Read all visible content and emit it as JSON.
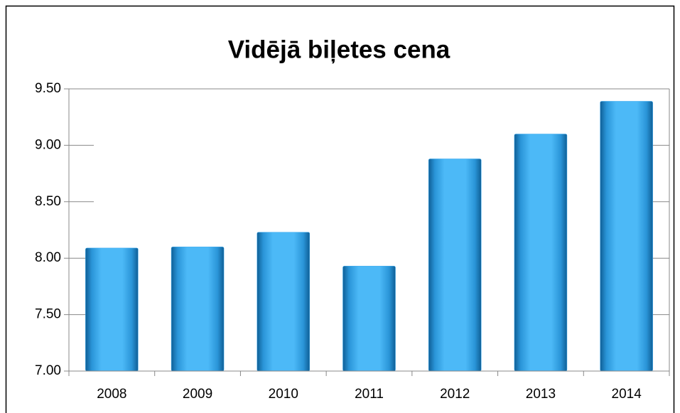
{
  "chart_data": {
    "type": "bar",
    "title": "Vidējā biļetes cena",
    "categories": [
      "2008",
      "2009",
      "2010",
      "2011",
      "2012",
      "2013",
      "2014"
    ],
    "values": [
      8.09,
      8.1,
      8.23,
      7.93,
      8.88,
      9.1,
      9.39
    ],
    "color": "#3aa9ee",
    "ylim": [
      7,
      9.5
    ],
    "yticks": [
      {
        "value": 7,
        "label": "7.00"
      },
      {
        "value": 7.5,
        "label": "7.50"
      },
      {
        "value": 8,
        "label": "8.00"
      },
      {
        "value": 8.5,
        "label": "8.50"
      },
      {
        "value": 9,
        "label": "9.00"
      },
      {
        "value": 9.5,
        "label": "9.50"
      }
    ]
  }
}
